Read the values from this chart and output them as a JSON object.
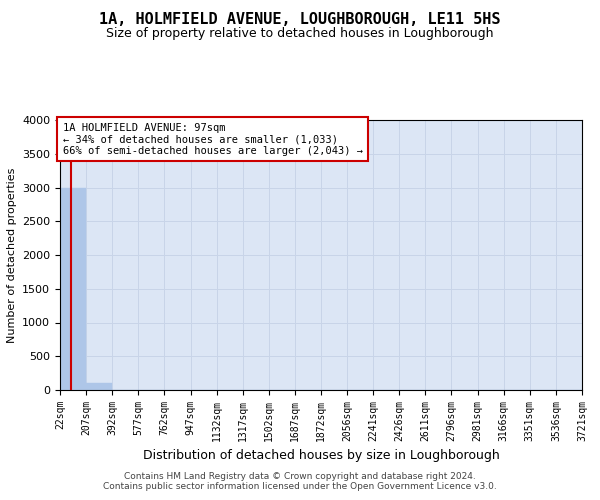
{
  "title": "1A, HOLMFIELD AVENUE, LOUGHBOROUGH, LE11 5HS",
  "subtitle": "Size of property relative to detached houses in Loughborough",
  "xlabel": "Distribution of detached houses by size in Loughborough",
  "ylabel": "Number of detached properties",
  "footnote1": "Contains HM Land Registry data © Crown copyright and database right 2024.",
  "footnote2": "Contains public sector information licensed under the Open Government Licence v3.0.",
  "bin_edges": [
    22,
    207,
    392,
    577,
    762,
    947,
    1132,
    1317,
    1502,
    1687,
    1872,
    2056,
    2241,
    2426,
    2611,
    2796,
    2981,
    3166,
    3351,
    3536,
    3721
  ],
  "bar_heights": [
    3000,
    107,
    5,
    2,
    2,
    1,
    1,
    0,
    0,
    0,
    0,
    0,
    0,
    0,
    0,
    0,
    0,
    0,
    0,
    0
  ],
  "bar_color": "#aec6e8",
  "bar_edgecolor": "#aec6e8",
  "property_size": 97,
  "vline_color": "#cc0000",
  "ylim": [
    0,
    4000
  ],
  "yticks": [
    0,
    500,
    1000,
    1500,
    2000,
    2500,
    3000,
    3500,
    4000
  ],
  "grid_color": "#c8d4e8",
  "bg_color": "#dce6f5",
  "annotation_text": "1A HOLMFIELD AVENUE: 97sqm\n← 34% of detached houses are smaller (1,033)\n66% of semi-detached houses are larger (2,043) →",
  "annotation_box_color": "#cc0000",
  "title_fontsize": 11,
  "subtitle_fontsize": 9,
  "ylabel_fontsize": 8,
  "xlabel_fontsize": 9,
  "ytick_fontsize": 8,
  "xtick_fontsize": 7,
  "annot_fontsize": 7.5,
  "footnote_fontsize": 6.5
}
